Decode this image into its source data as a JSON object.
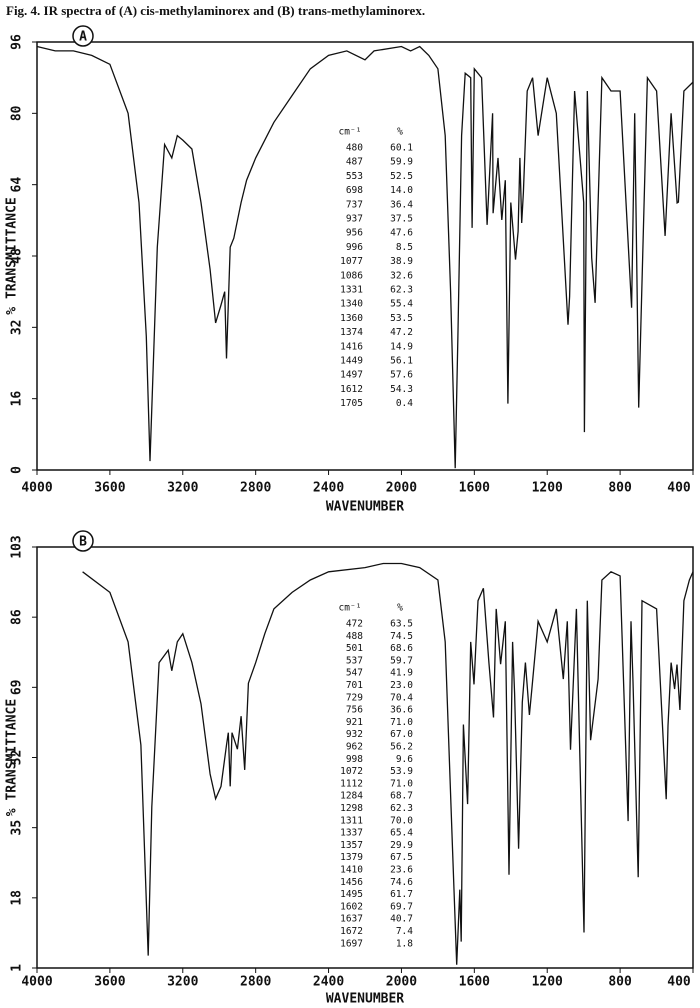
{
  "caption": "Fig. 4. IR spectra of (A) cis-methylaminorex and (B) trans-methylaminorex.",
  "chart_data": [
    {
      "type": "line",
      "panel_label": "A",
      "x_label": "WAVENUMBER",
      "y_label": "% TRANSMITTANCE",
      "xlim": [
        4000,
        400
      ],
      "xticks": [
        4000,
        3600,
        3200,
        2800,
        2400,
        2000,
        1600,
        1200,
        800,
        400
      ],
      "ylim": [
        0,
        96
      ],
      "yticks": [
        0,
        16,
        32,
        48,
        64,
        80,
        96
      ],
      "series": [
        {
          "color": "#111111",
          "x": [
            4000,
            3900,
            3800,
            3700,
            3600,
            3500,
            3440,
            3400,
            3380,
            3340,
            3300,
            3260,
            3230,
            3200,
            3150,
            3100,
            3050,
            3020,
            2990,
            2970,
            2960,
            2940,
            2920,
            2880,
            2850,
            2800,
            2700,
            2600,
            2500,
            2400,
            2300,
            2200,
            2150,
            2000,
            1950,
            1900,
            1850,
            1800,
            1760,
            1730,
            1705,
            1690,
            1670,
            1650,
            1620,
            1612,
            1600,
            1560,
            1530,
            1500,
            1497,
            1470,
            1449,
            1430,
            1416,
            1400,
            1374,
            1360,
            1350,
            1340,
            1331,
            1310,
            1280,
            1250,
            1200,
            1150,
            1086,
            1077,
            1050,
            1000,
            996,
            980,
            956,
            937,
            900,
            850,
            800,
            737,
            720,
            698,
            650,
            600,
            553,
            520,
            487,
            480,
            450,
            400
          ],
          "values": [
            95,
            94,
            94,
            93,
            91,
            80,
            60,
            30,
            2,
            50,
            73,
            70,
            75,
            74,
            72,
            60,
            45,
            33,
            37,
            40,
            25,
            50,
            52,
            60,
            65,
            70,
            78,
            84,
            90,
            93,
            94,
            92,
            94,
            95,
            94,
            95,
            93,
            90,
            75,
            40,
            0.4,
            30,
            75,
            89,
            88,
            54.3,
            90,
            88,
            55,
            80,
            57.6,
            70,
            56.1,
            65,
            14.9,
            60,
            47.2,
            53.5,
            70,
            55.4,
            62.3,
            85,
            88,
            75,
            88,
            80,
            32.6,
            38.9,
            85,
            60,
            8.5,
            85,
            47.6,
            37.5,
            88,
            85,
            85,
            36.4,
            80,
            14,
            88,
            85,
            52.5,
            80,
            59.9,
            60.1,
            85,
            87
          ]
        }
      ],
      "peaks": {
        "header": [
          "cm⁻¹",
          "%"
        ],
        "rows": [
          [
            "480",
            "60.1"
          ],
          [
            "487",
            "59.9"
          ],
          [
            "553",
            "52.5"
          ],
          [
            "698",
            "14.0"
          ],
          [
            "737",
            "36.4"
          ],
          [
            "937",
            "37.5"
          ],
          [
            "956",
            "47.6"
          ],
          [
            "996",
            "8.5"
          ],
          [
            "1077",
            "38.9"
          ],
          [
            "1086",
            "32.6"
          ],
          [
            "1331",
            "62.3"
          ],
          [
            "1340",
            "55.4"
          ],
          [
            "1360",
            "53.5"
          ],
          [
            "1374",
            "47.2"
          ],
          [
            "1416",
            "14.9"
          ],
          [
            "1449",
            "56.1"
          ],
          [
            "1497",
            "57.6"
          ],
          [
            "1612",
            "54.3"
          ],
          [
            "1705",
            "0.4"
          ]
        ]
      }
    },
    {
      "type": "line",
      "panel_label": "B",
      "x_label": "WAVENUMBER",
      "y_label": "% TRANSMITTANCE",
      "xlim": [
        4000,
        400
      ],
      "xticks": [
        4000,
        3600,
        3200,
        2800,
        2400,
        2000,
        1600,
        1200,
        800,
        400
      ],
      "ylim": [
        1,
        103
      ],
      "yticks": [
        1,
        18,
        35,
        52,
        69,
        86,
        103
      ],
      "series": [
        {
          "color": "#111111",
          "x": [
            3750,
            3600,
            3500,
            3430,
            3390,
            3370,
            3330,
            3280,
            3260,
            3230,
            3200,
            3150,
            3100,
            3050,
            3020,
            2990,
            2960,
            2950,
            2940,
            2930,
            2900,
            2880,
            2860,
            2840,
            2800,
            2750,
            2700,
            2600,
            2500,
            2400,
            2200,
            2100,
            2000,
            1900,
            1800,
            1760,
            1720,
            1697,
            1680,
            1672,
            1660,
            1637,
            1620,
            1602,
            1580,
            1550,
            1520,
            1495,
            1480,
            1456,
            1430,
            1410,
            1390,
            1379,
            1357,
            1337,
            1320,
            1311,
            1298,
            1284,
            1250,
            1200,
            1150,
            1112,
            1090,
            1072,
            1040,
            998,
            980,
            962,
            932,
            921,
            900,
            850,
            800,
            756,
            740,
            729,
            701,
            680,
            600,
            547,
            537,
            520,
            501,
            488,
            472,
            450,
            420,
            400
          ],
          "values": [
            97,
            92,
            80,
            55,
            4,
            40,
            75,
            78,
            73,
            80,
            82,
            75,
            65,
            48,
            42,
            45,
            55,
            58,
            45,
            58,
            54,
            62,
            49,
            70,
            75,
            82,
            88,
            92,
            95,
            97,
            98,
            99,
            99,
            98,
            95,
            80,
            30,
            1.8,
            20,
            7.4,
            60,
            40.7,
            80,
            69.7,
            90,
            93,
            75,
            61.7,
            88,
            74.6,
            85,
            23.6,
            80,
            67.5,
            29.9,
            65.4,
            75,
            70.0,
            62.3,
            68.7,
            85,
            80,
            88,
            71.0,
            85,
            53.9,
            88,
            9.6,
            90,
            56.2,
            67.0,
            71.0,
            95,
            97,
            96,
            36.6,
            85,
            70.4,
            23.0,
            90,
            88,
            41.9,
            59.7,
            75,
            68.6,
            74.5,
            63.5,
            90,
            95,
            97
          ]
        }
      ],
      "peaks": {
        "header": [
          "cm⁻¹",
          "%"
        ],
        "rows": [
          [
            "472",
            "63.5"
          ],
          [
            "488",
            "74.5"
          ],
          [
            "501",
            "68.6"
          ],
          [
            "537",
            "59.7"
          ],
          [
            "547",
            "41.9"
          ],
          [
            "701",
            "23.0"
          ],
          [
            "729",
            "70.4"
          ],
          [
            "756",
            "36.6"
          ],
          [
            "921",
            "71.0"
          ],
          [
            "932",
            "67.0"
          ],
          [
            "962",
            "56.2"
          ],
          [
            "998",
            "9.6"
          ],
          [
            "1072",
            "53.9"
          ],
          [
            "1112",
            "71.0"
          ],
          [
            "1284",
            "68.7"
          ],
          [
            "1298",
            "62.3"
          ],
          [
            "1311",
            "70.0"
          ],
          [
            "1337",
            "65.4"
          ],
          [
            "1357",
            "29.9"
          ],
          [
            "1379",
            "67.5"
          ],
          [
            "1410",
            "23.6"
          ],
          [
            "1456",
            "74.6"
          ],
          [
            "1495",
            "61.7"
          ],
          [
            "1602",
            "69.7"
          ],
          [
            "1637",
            "40.7"
          ],
          [
            "1672",
            "7.4"
          ],
          [
            "1697",
            "1.8"
          ]
        ]
      }
    }
  ]
}
